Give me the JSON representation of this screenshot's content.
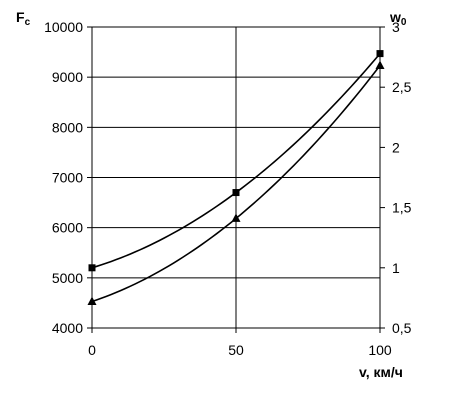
{
  "chart_data": {
    "type": "line",
    "title": "",
    "xlabel": "v, км/ч",
    "ylabel": "F",
    "ylabel_sub": "c",
    "y2label": "w",
    "y2label_sub": "0",
    "xlim": [
      0,
      100
    ],
    "ylim": [
      4000,
      10000
    ],
    "y2lim": [
      0.5,
      3
    ],
    "x_ticks": [
      "0",
      "50",
      "100"
    ],
    "y_ticks": [
      "4000",
      "5000",
      "6000",
      "7000",
      "8000",
      "9000",
      "10000"
    ],
    "y2_ticks": [
      "0,5",
      "1",
      "1,5",
      "2",
      "2,5",
      "3"
    ],
    "grid": true,
    "series": [
      {
        "marker": "square",
        "axis": "left",
        "x": [
          0,
          50,
          100
        ],
        "values": [
          5200,
          6700,
          9470
        ]
      },
      {
        "marker": "triangle",
        "axis": "right",
        "x": [
          0,
          50,
          100
        ],
        "values": [
          0.72,
          1.41,
          2.68
        ]
      }
    ],
    "colors": {
      "line": "#000000",
      "grid": "#000000",
      "background": "#ffffff"
    }
  }
}
